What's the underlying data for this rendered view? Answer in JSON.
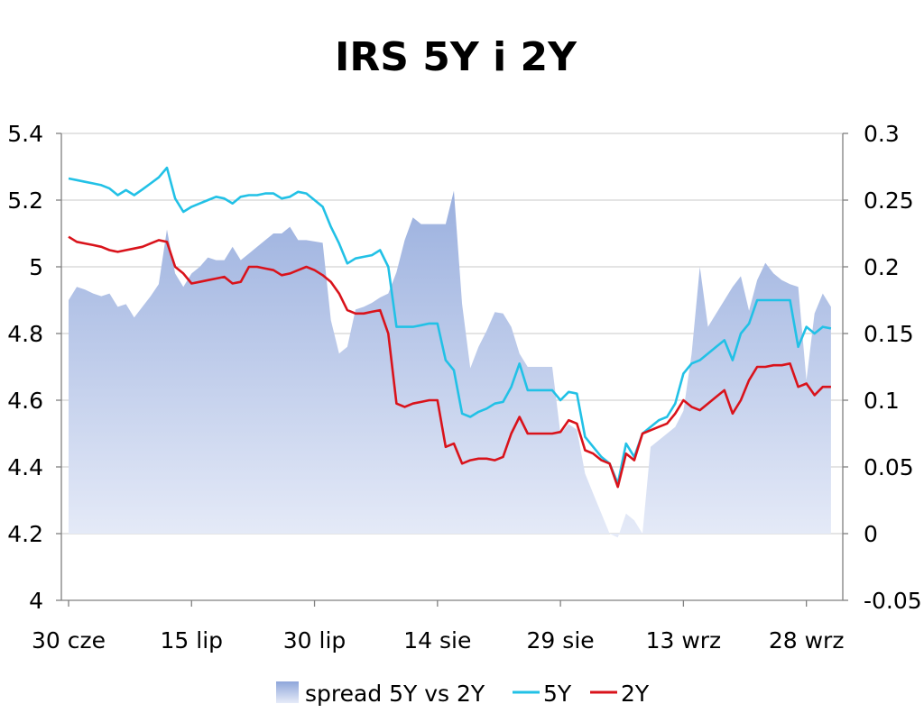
{
  "chart_data": {
    "type": "line",
    "title": "IRS 5Y i 2Y",
    "x_tick_labels": [
      "30 cze",
      "15 lip",
      "30 lip",
      "14 sie",
      "29 sie",
      "13 wrz",
      "28 wrz"
    ],
    "x_tick_days": [
      0,
      15,
      30,
      45,
      60,
      75,
      90
    ],
    "x_range": [
      0,
      94
    ],
    "y_left": {
      "ylim": [
        4,
        5.4
      ],
      "ticks": [
        4,
        4.2,
        4.4,
        4.6,
        4.8,
        5,
        5.2,
        5.4
      ],
      "tick_labels": [
        "4",
        "4.2",
        "4.4",
        "4.6",
        "4.8",
        "5",
        "5.2",
        "5.4"
      ]
    },
    "y_right": {
      "ylim": [
        -0.05,
        0.3
      ],
      "ticks": [
        -0.05,
        0,
        0.05,
        0.1,
        0.15,
        0.2,
        0.25,
        0.3
      ],
      "tick_labels": [
        "-0.05",
        "0",
        "0.05",
        "0.1",
        "0.15",
        "0.2",
        "0.25",
        "0.3"
      ]
    },
    "grid": true,
    "legend_position": "bottom",
    "series": [
      {
        "name": "spread 5Y vs 2Y",
        "kind": "area",
        "axis": "right",
        "color": "#9db1df",
        "x": [
          0,
          1,
          2,
          3,
          4,
          5,
          6,
          7,
          8,
          9,
          10,
          11,
          12,
          13,
          14,
          15,
          16,
          17,
          18,
          19,
          20,
          21,
          22,
          23,
          24,
          25,
          26,
          27,
          28,
          29,
          30,
          31,
          32,
          33,
          34,
          35,
          36,
          37,
          38,
          39,
          40,
          41,
          42,
          43,
          44,
          45,
          46,
          47,
          48,
          49,
          50,
          51,
          52,
          53,
          54,
          55,
          56,
          57,
          58,
          59,
          60,
          61,
          62,
          63,
          64,
          65,
          66,
          67,
          68,
          69,
          70,
          71,
          72,
          73,
          74,
          75,
          76,
          77,
          78,
          79,
          80,
          81,
          82,
          83,
          84,
          85,
          86,
          87,
          88,
          89,
          90,
          91,
          92,
          93
        ],
        "values": [
          0.175,
          0.185,
          0.183,
          0.18,
          0.178,
          0.18,
          0.17,
          0.172,
          0.162,
          0.17,
          0.178,
          0.187,
          0.228,
          0.195,
          0.185,
          0.195,
          0.2,
          0.207,
          0.205,
          0.205,
          0.215,
          0.205,
          0.21,
          0.215,
          0.22,
          0.225,
          0.225,
          0.23,
          0.22,
          0.22,
          0.219,
          0.218,
          0.16,
          0.135,
          0.14,
          0.168,
          0.17,
          0.173,
          0.177,
          0.18,
          0.196,
          0.22,
          0.237,
          0.232,
          0.232,
          0.232,
          0.232,
          0.257,
          0.172,
          0.124,
          0.14,
          0.152,
          0.166,
          0.165,
          0.155,
          0.135,
          0.125,
          0.125,
          0.125,
          0.125,
          0.075,
          0.082,
          0.078,
          0.045,
          0.03,
          0.015,
          0.0,
          -0.003,
          0.015,
          0.01,
          0.0,
          0.065,
          0.07,
          0.075,
          0.08,
          0.092,
          0.135,
          0.2,
          0.155,
          0.165,
          0.175,
          0.185,
          0.193,
          0.167,
          0.19,
          0.203,
          0.195,
          0.19,
          0.187,
          0.185,
          0.115,
          0.165,
          0.18,
          0.17
        ]
      },
      {
        "name": "5Y",
        "kind": "line",
        "axis": "left",
        "color": "#22c1e6",
        "x": [
          0,
          1,
          2,
          3,
          4,
          5,
          6,
          7,
          8,
          9,
          10,
          11,
          12,
          13,
          14,
          15,
          16,
          17,
          18,
          19,
          20,
          21,
          22,
          23,
          24,
          25,
          26,
          27,
          28,
          29,
          30,
          31,
          32,
          33,
          34,
          35,
          36,
          37,
          38,
          39,
          40,
          41,
          42,
          43,
          44,
          45,
          46,
          47,
          48,
          49,
          50,
          51,
          52,
          53,
          54,
          55,
          56,
          57,
          58,
          59,
          60,
          61,
          62,
          63,
          64,
          65,
          66,
          67,
          68,
          69,
          70,
          71,
          72,
          73,
          74,
          75,
          76,
          77,
          78,
          79,
          80,
          81,
          82,
          83,
          84,
          85,
          86,
          87,
          88,
          89,
          90,
          91,
          92,
          93
        ],
        "values": [
          5.265,
          5.26,
          5.255,
          5.25,
          5.245,
          5.235,
          5.215,
          5.23,
          5.215,
          5.232,
          5.25,
          5.268,
          5.297,
          5.205,
          5.165,
          5.18,
          5.19,
          5.2,
          5.21,
          5.205,
          5.19,
          5.21,
          5.215,
          5.215,
          5.22,
          5.22,
          5.205,
          5.21,
          5.225,
          5.22,
          5.2,
          5.18,
          5.12,
          5.07,
          5.01,
          5.025,
          5.03,
          5.035,
          5.05,
          5.0,
          4.82,
          4.82,
          4.82,
          4.825,
          4.83,
          4.83,
          4.72,
          4.69,
          4.56,
          4.55,
          4.565,
          4.575,
          4.59,
          4.595,
          4.64,
          4.71,
          4.63,
          4.63,
          4.63,
          4.63,
          4.6,
          4.625,
          4.62,
          4.49,
          4.46,
          4.43,
          4.41,
          4.35,
          4.47,
          4.43,
          4.5,
          4.52,
          4.54,
          4.55,
          4.59,
          4.68,
          4.71,
          4.72,
          4.74,
          4.76,
          4.78,
          4.72,
          4.8,
          4.83,
          4.9,
          4.9,
          4.9,
          4.9,
          4.9,
          4.76,
          4.82,
          4.8,
          4.82,
          4.815
        ]
      },
      {
        "name": "2Y",
        "kind": "line",
        "axis": "left",
        "color": "#d9131b",
        "x": [
          0,
          1,
          2,
          3,
          4,
          5,
          6,
          7,
          8,
          9,
          10,
          11,
          12,
          13,
          14,
          15,
          16,
          17,
          18,
          19,
          20,
          21,
          22,
          23,
          24,
          25,
          26,
          27,
          28,
          29,
          30,
          31,
          32,
          33,
          34,
          35,
          36,
          37,
          38,
          39,
          40,
          41,
          42,
          43,
          44,
          45,
          46,
          47,
          48,
          49,
          50,
          51,
          52,
          53,
          54,
          55,
          56,
          57,
          58,
          59,
          60,
          61,
          62,
          63,
          64,
          65,
          66,
          67,
          68,
          69,
          70,
          71,
          72,
          73,
          74,
          75,
          76,
          77,
          78,
          79,
          80,
          81,
          82,
          83,
          84,
          85,
          86,
          87,
          88,
          89,
          90,
          91,
          92,
          93
        ],
        "values": [
          5.09,
          5.075,
          5.07,
          5.065,
          5.06,
          5.05,
          5.045,
          5.05,
          5.055,
          5.06,
          5.07,
          5.08,
          5.075,
          5.0,
          4.98,
          4.95,
          4.955,
          4.96,
          4.965,
          4.97,
          4.95,
          4.955,
          5.0,
          5.0,
          4.995,
          4.99,
          4.975,
          4.98,
          4.99,
          5.0,
          4.99,
          4.975,
          4.955,
          4.92,
          4.87,
          4.86,
          4.86,
          4.865,
          4.87,
          4.8,
          4.59,
          4.58,
          4.59,
          4.595,
          4.6,
          4.6,
          4.46,
          4.47,
          4.41,
          4.42,
          4.425,
          4.425,
          4.42,
          4.43,
          4.5,
          4.55,
          4.5,
          4.5,
          4.5,
          4.5,
          4.505,
          4.54,
          4.53,
          4.45,
          4.44,
          4.42,
          4.41,
          4.34,
          4.44,
          4.42,
          4.5,
          4.51,
          4.52,
          4.53,
          4.56,
          4.6,
          4.58,
          4.57,
          4.59,
          4.61,
          4.63,
          4.56,
          4.6,
          4.66,
          4.7,
          4.7,
          4.705,
          4.705,
          4.71,
          4.64,
          4.65,
          4.615,
          4.64,
          4.64
        ]
      }
    ]
  }
}
